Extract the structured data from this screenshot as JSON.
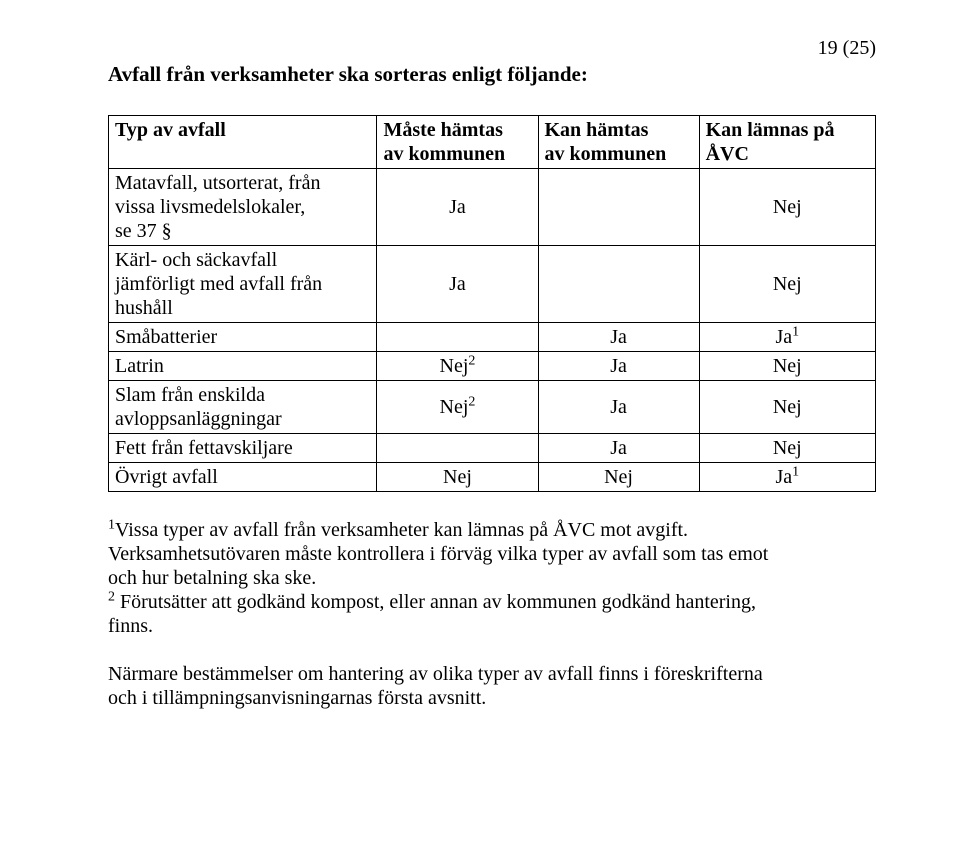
{
  "page_number": "19 (25)",
  "heading": "Avfall från verksamheter ska sorteras enligt följande:",
  "table": {
    "header": {
      "col1": "Typ av avfall",
      "col2_line1": "Måste hämtas",
      "col2_line2": "av kommunen",
      "col3_line1": "Kan hämtas",
      "col3_line2": "av kommunen",
      "col4_line1": "Kan lämnas på",
      "col4_line2": "ÅVC"
    },
    "rows": {
      "r1": {
        "c1_l1": "Matavfall, utsorterat, från",
        "c1_l2": "vissa livsmedelslokaler,",
        "c1_l3": "se 37 §",
        "c2": "Ja",
        "c3": "",
        "c4": "Nej"
      },
      "r2": {
        "c1_l1": "Kärl- och säckavfall",
        "c1_l2": "jämförligt med avfall från",
        "c1_l3": "hushåll",
        "c2": "Ja",
        "c3": "",
        "c4": "Nej"
      },
      "r3": {
        "c1": "Småbatterier",
        "c2": "",
        "c3": "Ja",
        "c4_base": "Ja",
        "c4_sup": "1"
      },
      "r4": {
        "c1": "Latrin",
        "c2_base": "Nej",
        "c2_sup": "2",
        "c3": "Ja",
        "c4": "Nej"
      },
      "r5": {
        "c1_l1": "Slam från enskilda",
        "c1_l2": "avloppsanläggningar",
        "c2_base": "Nej",
        "c2_sup": "2",
        "c3": "Ja",
        "c4": "Nej"
      },
      "r6": {
        "c1": "Fett från fettavskiljare",
        "c2": "",
        "c3": "Ja",
        "c4": "Nej"
      },
      "r7": {
        "c1": "Övrigt avfall",
        "c2": "Nej",
        "c3": "Nej",
        "c4_base": "Ja",
        "c4_sup": "1"
      }
    }
  },
  "footnotes": {
    "note1_sup": "1",
    "note1_line1": "Vissa typer av avfall från verksamheter kan lämnas på ÅVC mot avgift.",
    "note1_line2": "Verksamhetsutövaren måste kontrollera i förväg vilka typer av avfall som tas emot",
    "note1_line3": "och hur betalning ska ske.",
    "note2_sup": "2",
    "note2_line1": " Förutsätter att godkänd kompost, eller annan av kommunen godkänd hantering,",
    "note2_line2": "finns."
  },
  "closing": {
    "line1": "Närmare bestämmelser om hantering av olika typer av avfall finns i föreskrifterna",
    "line2": "och i tillämpningsanvisningarnas första avsnitt."
  }
}
